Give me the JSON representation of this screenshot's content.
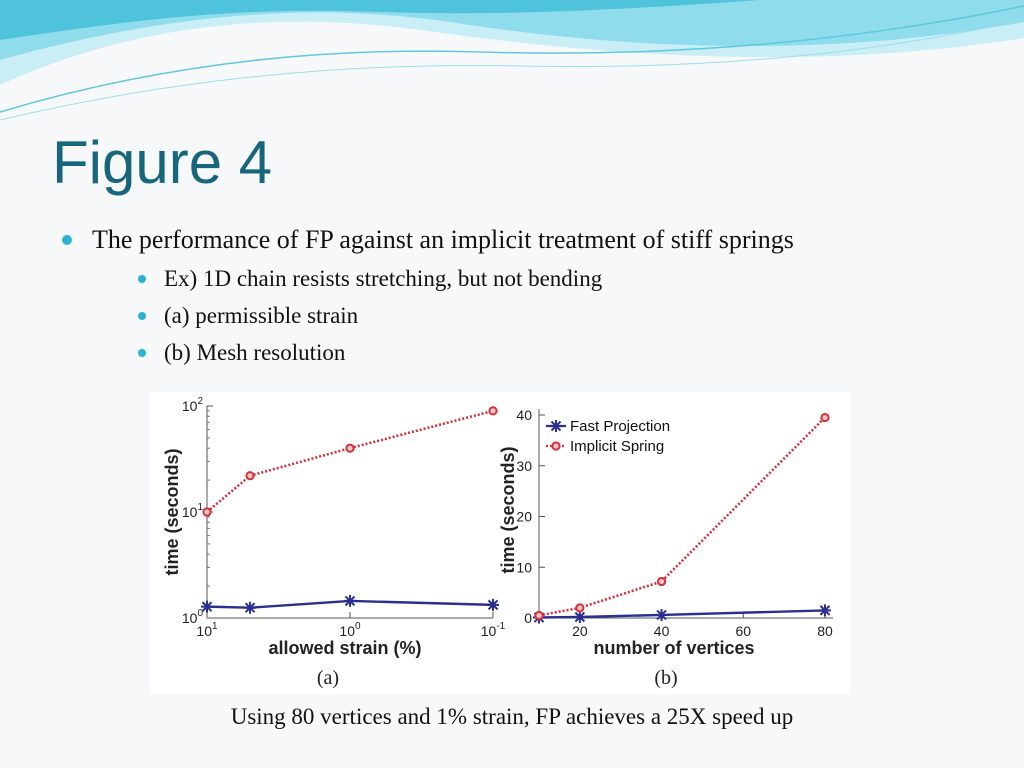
{
  "title": "Figure 4",
  "bullets": {
    "main": "The performance of FP against an implicit treatment of stiff springs",
    "sub": [
      "Ex) 1D chain resists stretching, but not bending",
      "(a) permissible strain",
      "(b) Mesh resolution"
    ]
  },
  "caption": "Using 80 vertices and 1% strain, FP achieves a 25X speed up",
  "colors": {
    "title": "#17667c",
    "bullet": "#2bb3d4",
    "fast_projection": "#2b2f8f",
    "implicit_spring": "#d4313b"
  },
  "chart_data": [
    {
      "type": "line",
      "panel_label": "(a)",
      "xlabel": "allowed strain (%)",
      "ylabel": "time (seconds)",
      "yscale": "log",
      "ylim": [
        1,
        100
      ],
      "xscale": "log",
      "xlim": [
        10,
        0.1
      ],
      "x_tick_labels": [
        {
          "base": "10",
          "exp": "1"
        },
        {
          "base": "10",
          "exp": "0"
        },
        {
          "base": "10",
          "exp": "-1"
        }
      ],
      "y_tick_labels": [
        {
          "base": "10",
          "exp": "0"
        },
        {
          "base": "10",
          "exp": "1"
        },
        {
          "base": "10",
          "exp": "2"
        }
      ],
      "series": [
        {
          "key": "fast",
          "marker": "star",
          "x": [
            10,
            5,
            1,
            0.1
          ],
          "y": [
            1.28,
            1.25,
            1.45,
            1.33
          ]
        },
        {
          "key": "implicit",
          "marker": "circle",
          "x": [
            10,
            5,
            1,
            0.1
          ],
          "y": [
            10,
            22,
            40,
            90
          ]
        }
      ]
    },
    {
      "type": "line",
      "panel_label": "(b)",
      "xlabel": "number of vertices",
      "ylabel": "time (seconds)",
      "xlim": [
        10,
        80
      ],
      "ylim": [
        0,
        40
      ],
      "xticks": [
        20,
        40,
        60,
        80
      ],
      "yticks": [
        0,
        10,
        20,
        30,
        40
      ],
      "legend_position": "top-left",
      "series": [
        {
          "key": "fast",
          "name": "Fast Projection",
          "marker": "star",
          "x": [
            10,
            20,
            40,
            80
          ],
          "y": [
            0.1,
            0.2,
            0.6,
            1.5
          ]
        },
        {
          "key": "implicit",
          "name": "Implicit Spring",
          "marker": "circle",
          "x": [
            10,
            20,
            40,
            80
          ],
          "y": [
            0.5,
            2,
            7.2,
            39.5
          ]
        }
      ]
    }
  ]
}
